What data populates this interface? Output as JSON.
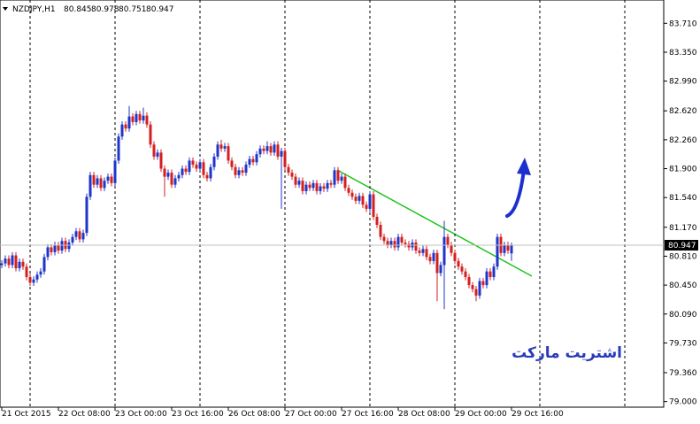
{
  "chart_data": {
    "type": "candlestick",
    "title": "NZDJPY,H1",
    "up_color": "#1f35c9",
    "down_color": "#d41f1f",
    "grid": true,
    "categories": [
      "21 Oct 2015",
      null,
      null,
      null,
      null,
      null,
      null,
      null,
      null,
      null,
      null,
      null,
      null,
      null,
      null,
      null,
      "22 Oct 08:00",
      null,
      null,
      null,
      null,
      null,
      null,
      null,
      null,
      null,
      null,
      null,
      null,
      null,
      null,
      null,
      "23 Oct 00:00",
      null,
      null,
      null,
      null,
      null,
      null,
      null,
      null,
      null,
      null,
      null,
      null,
      null,
      null,
      null,
      "23 Oct 16:00",
      null,
      null,
      null,
      null,
      null,
      null,
      null,
      null,
      null,
      null,
      null,
      null,
      null,
      null,
      null,
      "26 Oct 08:00",
      null,
      null,
      null,
      null,
      null,
      null,
      null,
      null,
      null,
      null,
      null,
      null,
      null,
      null,
      null,
      "27 Oct 00:00",
      null,
      null,
      null,
      null,
      null,
      null,
      null,
      null,
      null,
      null,
      null,
      null,
      null,
      null,
      null,
      "27 Oct 16:00",
      null,
      null,
      null,
      null,
      null,
      null,
      null,
      null,
      null,
      null,
      null,
      null,
      null,
      null,
      null,
      "28 Oct 08:00",
      null,
      null,
      null,
      null,
      null,
      null,
      null,
      null,
      null,
      null,
      null,
      null,
      null,
      null,
      null,
      "29 Oct 00:00",
      null,
      null,
      null,
      null,
      null,
      null,
      null,
      null,
      null,
      null,
      null,
      null,
      null,
      null,
      null,
      "29 Oct 16:00"
    ],
    "open": [
      80.7,
      80.72,
      80.78,
      80.7,
      80.82,
      80.66,
      80.74,
      80.68,
      80.55,
      80.48,
      80.52,
      80.58,
      80.62,
      80.8,
      80.92,
      80.86,
      80.95,
      80.88,
      81.0,
      80.9,
      80.98,
      81.05,
      81.12,
      81.02,
      81.1,
      81.55,
      81.82,
      81.7,
      81.78,
      81.66,
      81.75,
      81.8,
      81.72,
      82.0,
      82.3,
      82.45,
      82.4,
      82.55,
      82.48,
      82.58,
      82.5,
      82.56,
      82.45,
      82.2,
      82.05,
      82.1,
      81.9,
      81.8,
      81.85,
      81.7,
      81.78,
      81.82,
      81.9,
      81.86,
      82.0,
      81.95,
      81.9,
      81.98,
      81.82,
      81.78,
      81.92,
      82.05,
      82.2,
      82.15,
      82.18,
      82.0,
      81.92,
      81.82,
      81.88,
      81.85,
      81.95,
      82.02,
      81.98,
      82.08,
      82.15,
      82.12,
      82.18,
      82.1,
      82.2,
      82.05,
      82.12,
      81.92,
      81.85,
      81.8,
      81.7,
      81.75,
      81.62,
      81.7,
      81.66,
      81.72,
      81.62,
      81.68,
      81.65,
      81.72,
      81.7,
      81.88,
      81.75,
      81.8,
      81.66,
      81.6,
      81.55,
      81.5,
      81.56,
      81.45,
      81.4,
      81.58,
      81.3,
      81.2,
      81.05,
      81.0,
      80.95,
      81.0,
      80.92,
      81.05,
      80.98,
      80.96,
      80.92,
      80.98,
      80.88,
      80.85,
      80.9,
      80.8,
      80.75,
      80.85,
      80.6,
      80.7,
      81.05,
      80.95,
      80.85,
      80.75,
      80.68,
      80.62,
      80.55,
      80.45,
      80.4,
      80.32,
      80.5,
      80.45,
      80.62,
      80.55,
      80.68,
      81.05,
      80.85,
      80.95,
      80.845
    ],
    "high": [
      80.76,
      80.82,
      80.82,
      80.86,
      80.86,
      80.78,
      80.78,
      80.72,
      80.59,
      80.56,
      80.62,
      80.66,
      80.84,
      80.96,
      80.96,
      80.99,
      80.99,
      81.04,
      81.04,
      81.02,
      81.09,
      81.16,
      81.16,
      81.14,
      81.59,
      81.86,
      81.86,
      81.82,
      81.82,
      81.79,
      81.84,
      81.84,
      82.04,
      82.34,
      82.49,
      82.49,
      82.68,
      82.59,
      82.62,
      82.62,
      82.66,
      82.6,
      82.49,
      82.24,
      82.14,
      82.14,
      81.94,
      81.89,
      81.89,
      81.82,
      81.86,
      81.94,
      81.94,
      82.04,
      82.04,
      81.99,
      82.02,
      82.02,
      81.86,
      81.96,
      82.09,
      82.24,
      82.26,
      82.22,
      82.22,
      82.04,
      81.96,
      81.92,
      81.92,
      81.99,
      82.06,
      82.06,
      82.12,
      82.19,
      82.19,
      82.24,
      82.22,
      82.24,
      82.24,
      82.16,
      82.16,
      81.96,
      81.89,
      81.84,
      81.79,
      81.79,
      81.74,
      81.74,
      81.76,
      81.76,
      81.72,
      81.72,
      81.76,
      81.76,
      81.92,
      81.92,
      81.84,
      81.84,
      81.7,
      81.64,
      81.59,
      81.6,
      81.6,
      81.49,
      81.62,
      81.62,
      81.34,
      81.24,
      81.09,
      81.04,
      81.04,
      81.04,
      81.09,
      81.09,
      81.02,
      81.0,
      81.02,
      81.02,
      80.92,
      80.94,
      80.94,
      80.84,
      80.89,
      80.89,
      80.74,
      81.25,
      81.09,
      80.99,
      80.89,
      80.79,
      80.72,
      80.66,
      80.59,
      80.49,
      80.44,
      80.54,
      80.54,
      80.66,
      80.66,
      80.72,
      81.09,
      81.09,
      80.99,
      80.99,
      80.978
    ],
    "low": [
      80.66,
      80.68,
      80.66,
      80.66,
      80.62,
      80.62,
      80.64,
      80.51,
      80.44,
      80.44,
      80.48,
      80.54,
      80.58,
      80.76,
      80.82,
      80.82,
      80.84,
      80.84,
      80.86,
      80.86,
      80.94,
      81.01,
      80.98,
      80.98,
      81.06,
      81.51,
      81.66,
      81.66,
      81.62,
      81.62,
      81.71,
      81.68,
      81.68,
      81.96,
      82.26,
      82.36,
      82.36,
      82.44,
      82.44,
      82.46,
      82.46,
      82.41,
      82.16,
      82.01,
      82.01,
      81.86,
      81.55,
      81.76,
      81.66,
      81.66,
      81.74,
      81.78,
      81.82,
      81.82,
      81.91,
      81.86,
      81.86,
      81.78,
      81.74,
      81.74,
      81.88,
      82.01,
      82.11,
      82.11,
      81.96,
      81.88,
      81.78,
      81.78,
      81.81,
      81.81,
      81.91,
      81.94,
      81.94,
      82.04,
      82.08,
      82.08,
      82.06,
      82.06,
      82.01,
      81.4,
      81.88,
      81.81,
      81.76,
      81.66,
      81.66,
      81.58,
      81.58,
      81.62,
      81.62,
      81.58,
      81.58,
      81.61,
      81.61,
      81.66,
      81.66,
      81.71,
      81.71,
      81.62,
      81.56,
      81.51,
      81.46,
      81.46,
      81.41,
      81.36,
      81.36,
      81.26,
      81.16,
      81.01,
      80.96,
      80.91,
      80.91,
      80.88,
      80.88,
      80.94,
      80.92,
      80.88,
      80.88,
      80.84,
      80.81,
      80.81,
      80.76,
      80.71,
      80.71,
      80.25,
      80.56,
      80.15,
      80.91,
      80.81,
      80.71,
      80.64,
      80.58,
      80.51,
      80.41,
      80.36,
      80.25,
      80.28,
      80.41,
      80.41,
      80.51,
      80.51,
      80.64,
      80.81,
      80.81,
      80.84,
      80.751
    ],
    "close": [
      80.72,
      80.78,
      80.7,
      80.82,
      80.66,
      80.74,
      80.68,
      80.55,
      80.48,
      80.52,
      80.58,
      80.62,
      80.8,
      80.92,
      80.86,
      80.95,
      80.88,
      81.0,
      80.9,
      80.98,
      81.05,
      81.12,
      81.02,
      81.1,
      81.55,
      81.82,
      81.7,
      81.78,
      81.66,
      81.75,
      81.8,
      81.72,
      82.0,
      82.3,
      82.45,
      82.4,
      82.55,
      82.48,
      82.58,
      82.5,
      82.56,
      82.45,
      82.2,
      82.05,
      82.1,
      81.9,
      81.8,
      81.85,
      81.7,
      81.78,
      81.82,
      81.9,
      81.86,
      82.0,
      81.95,
      81.9,
      81.98,
      81.82,
      81.78,
      81.92,
      82.05,
      82.2,
      82.15,
      82.18,
      82.0,
      81.92,
      81.82,
      81.88,
      81.85,
      81.95,
      82.02,
      81.98,
      82.08,
      82.15,
      82.12,
      82.18,
      82.1,
      82.2,
      82.05,
      82.12,
      81.92,
      81.85,
      81.8,
      81.7,
      81.75,
      81.62,
      81.7,
      81.66,
      81.72,
      81.62,
      81.68,
      81.65,
      81.72,
      81.7,
      81.88,
      81.75,
      81.8,
      81.66,
      81.6,
      81.55,
      81.5,
      81.56,
      81.45,
      81.4,
      81.58,
      81.3,
      81.2,
      81.05,
      81.0,
      80.95,
      81.0,
      80.92,
      81.05,
      80.98,
      80.96,
      80.92,
      80.98,
      80.88,
      80.85,
      80.9,
      80.8,
      80.75,
      80.85,
      80.6,
      80.7,
      81.05,
      80.95,
      80.85,
      80.75,
      80.68,
      80.62,
      80.55,
      80.45,
      80.4,
      80.32,
      80.5,
      80.45,
      80.62,
      80.55,
      80.68,
      81.05,
      80.85,
      80.95,
      80.88,
      80.947
    ],
    "ylim": [
      78.93,
      84.0
    ],
    "yticks": [
      {
        "value": 83.71,
        "label": "83.710"
      },
      {
        "value": 83.35,
        "label": "83.350"
      },
      {
        "value": 82.99,
        "label": "82.990"
      },
      {
        "value": 82.62,
        "label": "82.620"
      },
      {
        "value": 82.26,
        "label": "82.260"
      },
      {
        "value": 81.9,
        "label": "81.900"
      },
      {
        "value": 81.54,
        "label": "81.540"
      },
      {
        "value": 81.17,
        "label": "81.170"
      },
      {
        "value": 80.81,
        "label": "80.810"
      },
      {
        "value": 80.45,
        "label": "80.450"
      },
      {
        "value": 80.09,
        "label": "80.090"
      },
      {
        "value": 79.73,
        "label": "79.730"
      },
      {
        "value": 79.36,
        "label": "79.360"
      },
      {
        "value": 79.0,
        "label": "79.000"
      }
    ],
    "annotation": "اشتريت ماركت"
  }
}
